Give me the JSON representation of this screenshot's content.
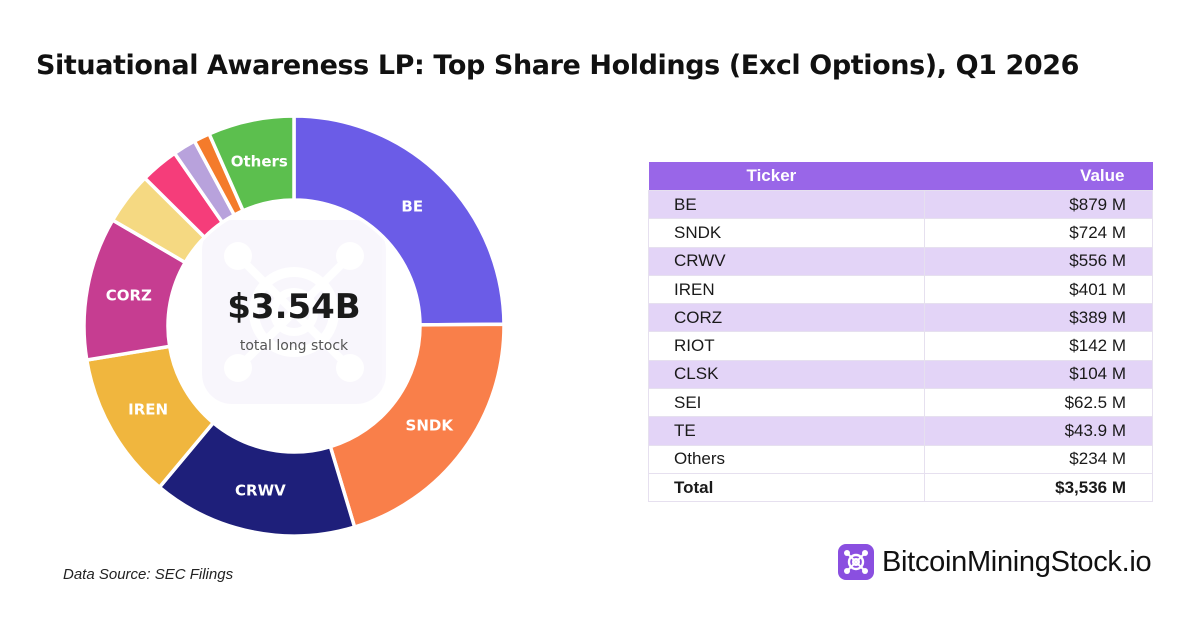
{
  "title": "Situational Awareness LP: Top Share Holdings (Excl Options), Q1 2026",
  "center": {
    "value": "$3.54B",
    "label": "total long stock"
  },
  "source": "Data Source: SEC Filings",
  "brand": {
    "name": "BitcoinMiningStock.io",
    "icon": "mining-chip-icon",
    "color": "#8a4fe0"
  },
  "table": {
    "headers": {
      "ticker": "Ticker",
      "value": "Value"
    },
    "rows": [
      {
        "ticker": "BE",
        "value": "$879 M"
      },
      {
        "ticker": "SNDK",
        "value": "$724 M"
      },
      {
        "ticker": "CRWV",
        "value": "$556 M"
      },
      {
        "ticker": "IREN",
        "value": "$401 M"
      },
      {
        "ticker": "CORZ",
        "value": "$389 M"
      },
      {
        "ticker": "RIOT",
        "value": "$142 M"
      },
      {
        "ticker": "CLSK",
        "value": "$104 M"
      },
      {
        "ticker": "SEI",
        "value": "$62.5 M"
      },
      {
        "ticker": "TE",
        "value": "$43.9 M"
      },
      {
        "ticker": "Others",
        "value": "$234 M"
      }
    ],
    "total": {
      "ticker": "Total",
      "value": "$3,536 M"
    }
  },
  "chart_data": {
    "type": "pie",
    "variant": "donut",
    "unit": "$M",
    "categories": [
      "BE",
      "SNDK",
      "CRWV",
      "IREN",
      "CORZ",
      "RIOT",
      "CLSK",
      "SEI",
      "TE",
      "Others"
    ],
    "values": [
      879,
      724,
      556,
      401,
      389,
      142,
      104,
      62.5,
      43.9,
      234
    ],
    "colors": [
      "#6b5ce7",
      "#f97f4a",
      "#1e1f7a",
      "#f0b63e",
      "#c63d91",
      "#f5d982",
      "#f53d7a",
      "#b8a2dc",
      "#f47b2b",
      "#5cbf4e"
    ],
    "slice_labels": [
      "BE",
      "SNDK",
      "CRWV",
      "IREN",
      "CORZ",
      "",
      "",
      "",
      "",
      "Others"
    ],
    "start": "12 o'clock",
    "direction": "clockwise"
  }
}
